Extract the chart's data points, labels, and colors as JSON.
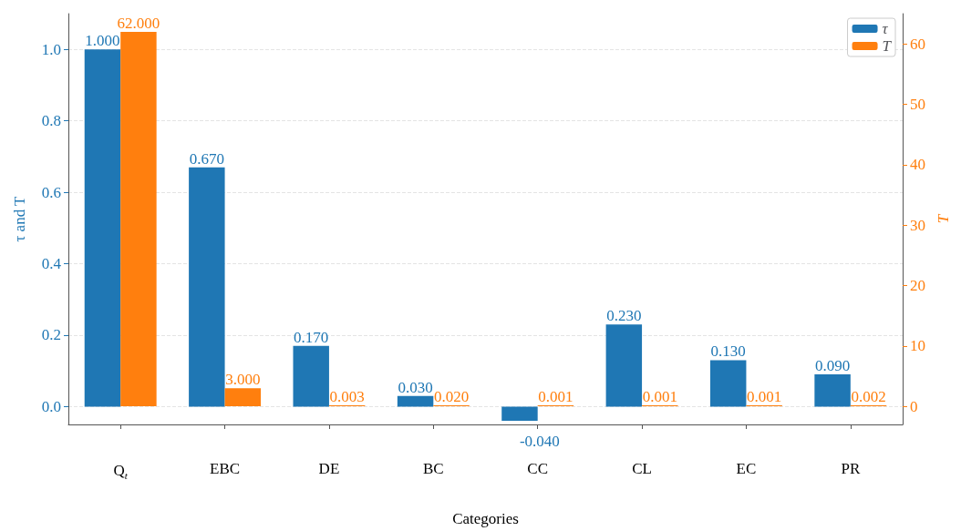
{
  "chart_data": {
    "type": "bar",
    "xlabel": "Categories",
    "ylabel": "τ and T",
    "y2label": "T",
    "categories": [
      "Q$_{t}$",
      "EBC",
      "DE",
      "BC",
      "CC",
      "CL",
      "EC",
      "PR"
    ],
    "series": [
      {
        "name": "τ",
        "color": "#1f77b4",
        "values": [
          1,
          0.67,
          0.17,
          0.03,
          -0.04,
          0.23,
          0.13,
          0.09
        ],
        "value_labels": [
          "1.000",
          "0.670",
          "0.170",
          "0.030",
          "-0.040",
          "0.230",
          "0.130",
          "0.090"
        ]
      },
      {
        "name": "T",
        "color": "#ff7f0e",
        "axis": "y2",
        "values": [
          62,
          3,
          0.003,
          0.02,
          0.001,
          0.001,
          0.001,
          0.002
        ],
        "value_labels": [
          "62.000",
          "3.000",
          "0.003",
          "0.020",
          "0.001",
          "0.001",
          "0.001",
          "0.002"
        ]
      }
    ],
    "ylim": [
      -0.05,
      1.1
    ],
    "yticks": [
      {
        "value": 0,
        "label": "0.0"
      },
      0.2,
      0.4,
      0.6,
      0.8,
      {
        "value": 1,
        "label": "1.0"
      }
    ],
    "y2lim": [
      -3,
      65
    ],
    "y2ticks": [
      0,
      10,
      20,
      30,
      40,
      50,
      60
    ],
    "grid": "y",
    "legend": "top right"
  }
}
